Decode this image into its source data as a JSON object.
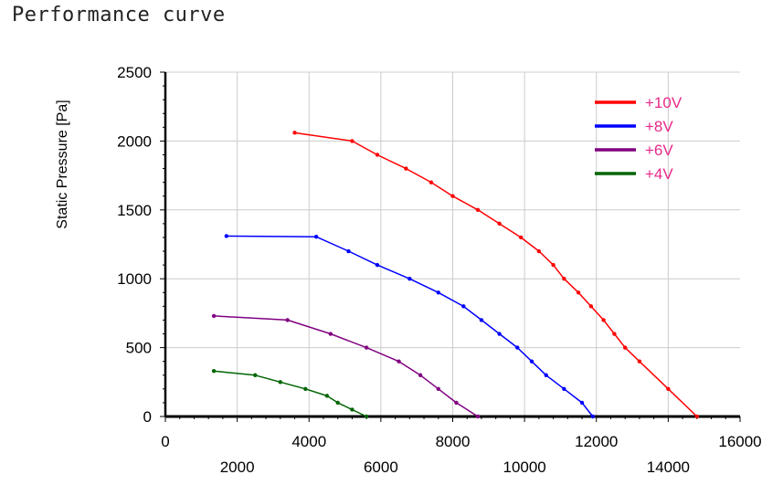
{
  "page": {
    "title": "Performance curve"
  },
  "chart_data": {
    "type": "line",
    "title": "",
    "xlabel": "",
    "ylabel": "Static Pressure [Pa]",
    "xlim": [
      0,
      16000
    ],
    "ylim": [
      0,
      2500
    ],
    "x_ticks_upper": [
      "0",
      "4000",
      "8000",
      "12000",
      "16000"
    ],
    "x_ticks_lower": [
      "2000",
      "6000",
      "10000",
      "14000"
    ],
    "y_ticks": [
      "0",
      "500",
      "1000",
      "1500",
      "2000",
      "2500"
    ],
    "grid": true,
    "legend_position": "top-right",
    "legend_text_color": "#e8298a",
    "series": [
      {
        "name": "+10V",
        "color": "#ff0000",
        "points": [
          [
            3600,
            2060
          ],
          [
            5200,
            2000
          ],
          [
            5900,
            1900
          ],
          [
            6700,
            1800
          ],
          [
            7400,
            1700
          ],
          [
            8000,
            1600
          ],
          [
            8700,
            1500
          ],
          [
            9300,
            1400
          ],
          [
            9900,
            1300
          ],
          [
            10400,
            1200
          ],
          [
            10800,
            1100
          ],
          [
            11100,
            1000
          ],
          [
            11500,
            900
          ],
          [
            11850,
            800
          ],
          [
            12200,
            700
          ],
          [
            12500,
            600
          ],
          [
            12800,
            500
          ],
          [
            13200,
            400
          ],
          [
            14000,
            200
          ],
          [
            14800,
            0
          ]
        ]
      },
      {
        "name": "+8V",
        "color": "#0000ff",
        "points": [
          [
            1700,
            1310
          ],
          [
            4200,
            1305
          ],
          [
            5100,
            1200
          ],
          [
            5900,
            1100
          ],
          [
            6800,
            1000
          ],
          [
            7600,
            900
          ],
          [
            8300,
            800
          ],
          [
            8800,
            700
          ],
          [
            9300,
            600
          ],
          [
            9800,
            500
          ],
          [
            10200,
            400
          ],
          [
            10600,
            300
          ],
          [
            11100,
            200
          ],
          [
            11600,
            100
          ],
          [
            11900,
            0
          ]
        ]
      },
      {
        "name": "+6V",
        "color": "#800080",
        "points": [
          [
            1350,
            730
          ],
          [
            3400,
            700
          ],
          [
            4600,
            600
          ],
          [
            5600,
            500
          ],
          [
            6500,
            400
          ],
          [
            7100,
            300
          ],
          [
            7600,
            200
          ],
          [
            8100,
            100
          ],
          [
            8700,
            0
          ]
        ]
      },
      {
        "name": "+4V",
        "color": "#006400",
        "points": [
          [
            1350,
            330
          ],
          [
            2500,
            300
          ],
          [
            3200,
            250
          ],
          [
            3900,
            200
          ],
          [
            4500,
            150
          ],
          [
            4800,
            100
          ],
          [
            5200,
            50
          ],
          [
            5600,
            0
          ]
        ]
      }
    ]
  }
}
